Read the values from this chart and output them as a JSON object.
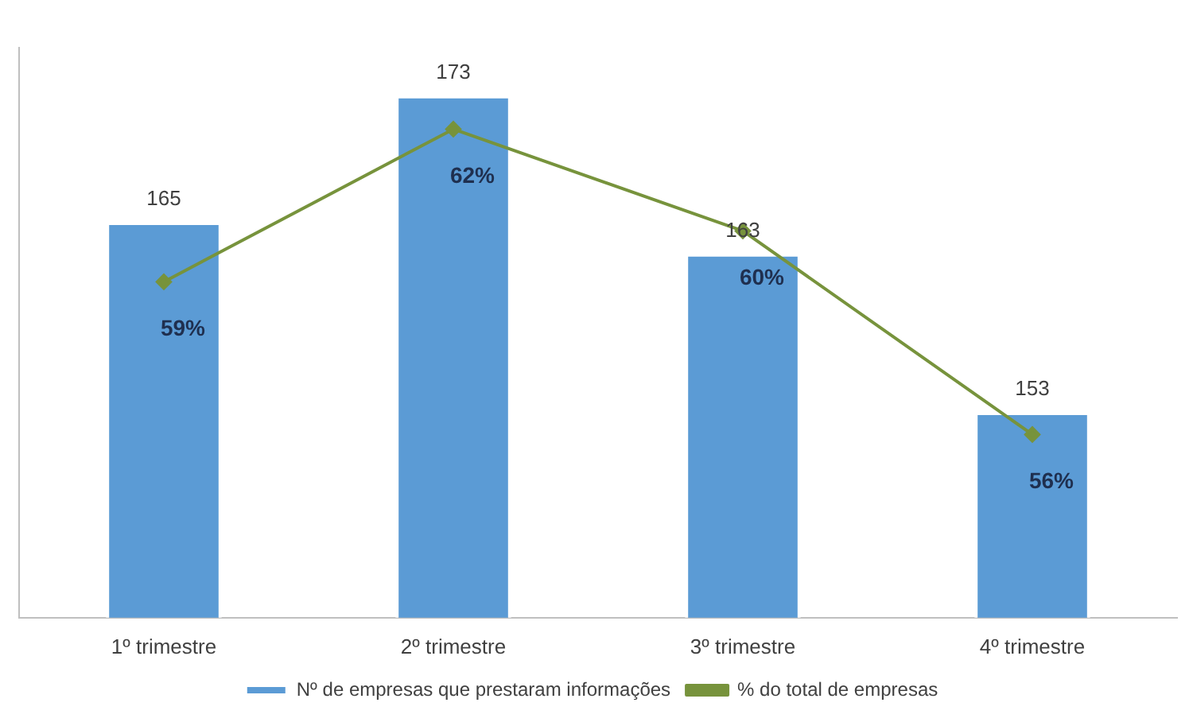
{
  "chart_data": {
    "type": "bar",
    "categories": [
      "1º trimestre",
      "2º trimestre",
      "3º trimestre",
      "4º trimestre"
    ],
    "series": [
      {
        "name": "Nº de empresas que prestaram informações",
        "color": "#5b9bd5",
        "values": [
          165,
          173,
          163,
          153
        ],
        "value_labels": [
          "165",
          "173",
          "163",
          "153"
        ]
      },
      {
        "name": "% do total de empresas",
        "type": "line",
        "axis": "y2",
        "color": "#77933c",
        "marker": "diamond",
        "values": [
          59,
          62,
          60,
          56
        ],
        "value_labels": [
          "59%",
          "62%",
          "60%",
          "56%"
        ]
      }
    ],
    "ylim": [
      140,
      176
    ],
    "y2lim": [
      52.4,
      63.6
    ],
    "tick_labels": "x",
    "grid": false,
    "legend": "bottom"
  }
}
